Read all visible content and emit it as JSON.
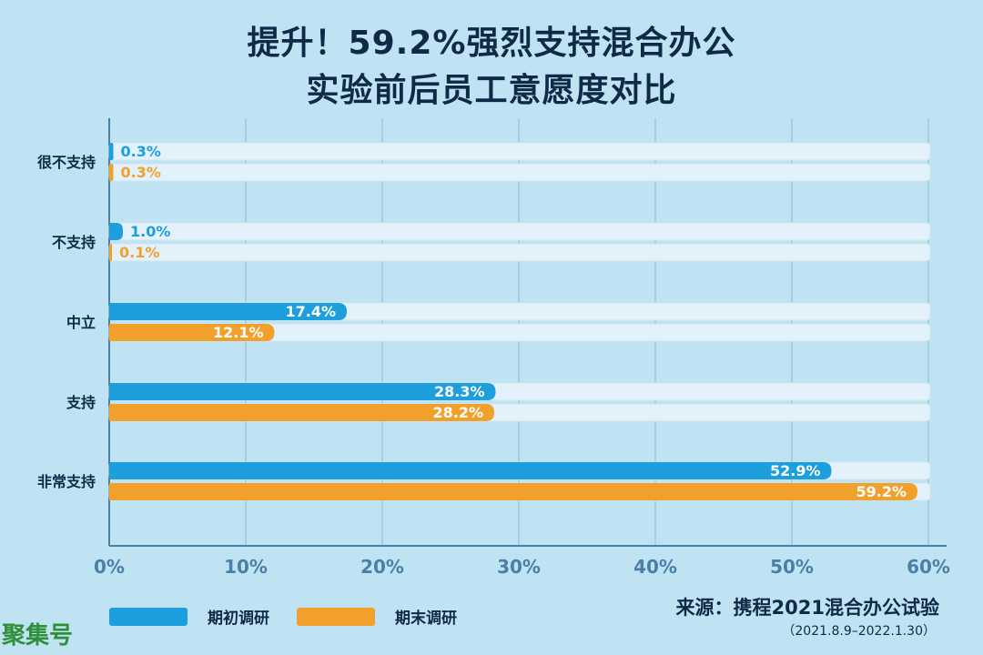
{
  "chart_data": {
    "type": "bar",
    "orientation": "horizontal",
    "title": "提升！59.2%强烈支持混合办公",
    "subtitle": "实验前后员工意愿度对比",
    "categories": [
      "很不支持",
      "不支持",
      "中立",
      "支持",
      "非常支持"
    ],
    "series": [
      {
        "name": "期初调研",
        "values": [
          0.3,
          1.0,
          17.4,
          28.3,
          52.9
        ],
        "color": "#1c9fdc"
      },
      {
        "name": "期末调研",
        "values": [
          0.3,
          0.1,
          12.1,
          28.2,
          59.2
        ],
        "color": "#f1a12b"
      }
    ],
    "xlim": [
      0,
      60
    ],
    "ticks": [
      "0%",
      "10%",
      "20%",
      "30%",
      "40%",
      "50%",
      "60%"
    ],
    "value_suffix": "%",
    "grid": true,
    "legend_position": "bottom-left"
  },
  "source": "来源：携程2021混合办公试验",
  "source_date": "（2021.8.9–2022.1.30）",
  "watermark": "聚集号",
  "colors": {
    "background": "#bfe3f3",
    "track": "#e3f2fa",
    "axis": "#4a80a8",
    "text": "#0e2a47"
  }
}
